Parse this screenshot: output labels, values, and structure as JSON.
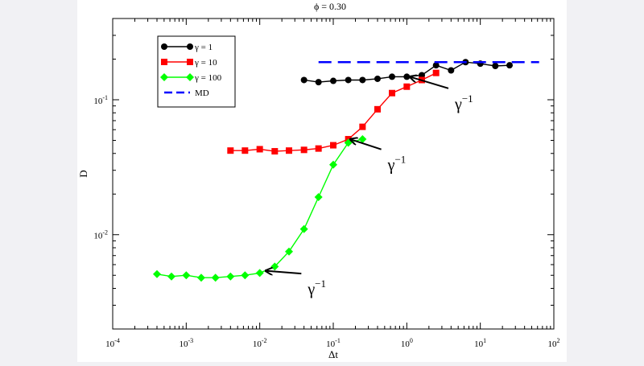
{
  "chart_data": {
    "type": "line",
    "title": "ϕ = 0.30",
    "xlabel": "Δt",
    "ylabel": "D",
    "xscale": "log",
    "yscale": "log",
    "xlim": [
      0.0001,
      100
    ],
    "ylim": [
      0.002,
      0.4
    ],
    "grid": false,
    "legend_position": "top-left",
    "x_ticks": [
      {
        "value": 0.0001,
        "base": "10",
        "exp": "-4"
      },
      {
        "value": 0.001,
        "base": "10",
        "exp": "-3"
      },
      {
        "value": 0.01,
        "base": "10",
        "exp": "-2"
      },
      {
        "value": 0.1,
        "base": "10",
        "exp": "-1"
      },
      {
        "value": 1,
        "base": "10",
        "exp": "0"
      },
      {
        "value": 10,
        "base": "10",
        "exp": "1"
      },
      {
        "value": 100,
        "base": "10",
        "exp": "2"
      }
    ],
    "y_ticks": [
      {
        "value": 0.01,
        "base": "10",
        "exp": "-2"
      },
      {
        "value": 0.1,
        "base": "10",
        "exp": "-1"
      }
    ],
    "series": [
      {
        "name": "γ = 1",
        "color": "#000000",
        "marker": "circle",
        "x": [
          0.04,
          0.063,
          0.1,
          0.16,
          0.25,
          0.4,
          0.63,
          1.0,
          1.6,
          2.5,
          4.0,
          6.3,
          10,
          16,
          25
        ],
        "y": [
          0.14,
          0.135,
          0.138,
          0.14,
          0.14,
          0.143,
          0.148,
          0.148,
          0.152,
          0.18,
          0.165,
          0.19,
          0.185,
          0.178,
          0.18
        ]
      },
      {
        "name": "γ = 10",
        "color": "#ff0000",
        "marker": "square",
        "x": [
          0.004,
          0.0063,
          0.01,
          0.016,
          0.025,
          0.04,
          0.063,
          0.1,
          0.16,
          0.25,
          0.4,
          0.63,
          1.0,
          1.6,
          2.5
        ],
        "y": [
          0.042,
          0.042,
          0.043,
          0.0415,
          0.042,
          0.0425,
          0.0435,
          0.046,
          0.051,
          0.063,
          0.085,
          0.112,
          0.125,
          0.14,
          0.158
        ]
      },
      {
        "name": "γ = 100",
        "color": "#00ff00",
        "marker": "diamond",
        "x": [
          0.0004,
          0.00063,
          0.001,
          0.0016,
          0.0025,
          0.004,
          0.0063,
          0.01,
          0.016,
          0.025,
          0.04,
          0.063,
          0.1,
          0.16,
          0.25
        ],
        "y": [
          0.0051,
          0.0049,
          0.005,
          0.0048,
          0.0048,
          0.0049,
          0.005,
          0.0052,
          0.0058,
          0.0075,
          0.011,
          0.019,
          0.033,
          0.048,
          0.051
        ]
      },
      {
        "name": "MD",
        "color": "#0000ff",
        "marker": "none",
        "dashed": true,
        "x": [
          0.063,
          63
        ],
        "y": [
          0.19,
          0.19
        ]
      }
    ],
    "annotations": [
      {
        "text": "γ",
        "sup": "−1",
        "arrow_tip": [
          1.1,
          0.148
        ],
        "label_at": [
          4.5,
          0.085
        ]
      },
      {
        "text": "γ",
        "sup": "−1",
        "arrow_tip": [
          0.17,
          0.051
        ],
        "label_at": [
          0.55,
          0.03
        ]
      },
      {
        "text": "γ",
        "sup": "−1",
        "arrow_tip": [
          0.012,
          0.0054
        ],
        "label_at": [
          0.045,
          0.0036
        ]
      }
    ]
  }
}
